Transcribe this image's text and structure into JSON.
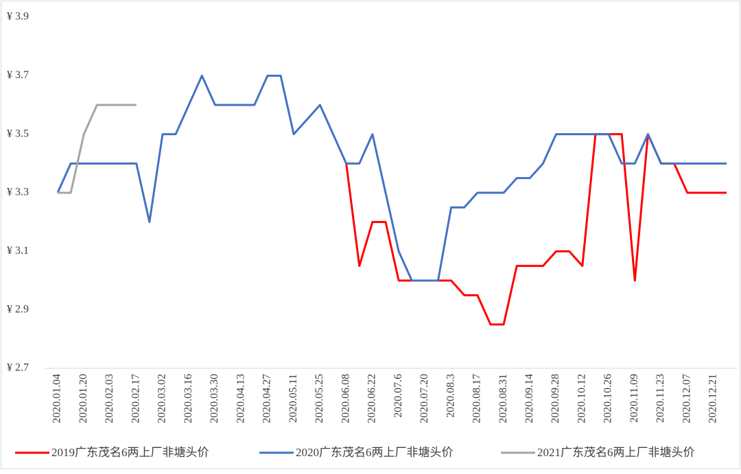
{
  "chart_data": {
    "type": "line",
    "categories": [
      "2020.01.04",
      null,
      "2020.01.20",
      null,
      "2020.02.03",
      null,
      "2020.02.17",
      null,
      "2020.03.02",
      null,
      "2020.03.16",
      null,
      "2020.03.30",
      null,
      "2020.04.13",
      null,
      "2020.04.27",
      null,
      "2020.05.11",
      null,
      "2020.05.25",
      null,
      "2020.06.08",
      null,
      "2020.06.22",
      null,
      "2020.07.6",
      null,
      "2020.07.20",
      null,
      "2020.08.3",
      null,
      "2020.08.17",
      null,
      "2020.08.31",
      null,
      "2020.09.14",
      null,
      "2020.09.28",
      null,
      "2020.10.12",
      null,
      "2020.10.26",
      null,
      "2020.11.09",
      null,
      "2020.11.23",
      null,
      "2020.12.07",
      null,
      "2020.12.21",
      null
    ],
    "series": [
      {
        "name": "2019广东茂名6两上厂非塘头价",
        "color": "#ff0000",
        "values": [
          null,
          null,
          null,
          null,
          null,
          null,
          null,
          null,
          null,
          null,
          null,
          null,
          null,
          null,
          null,
          null,
          null,
          null,
          null,
          null,
          null,
          null,
          3.4,
          3.05,
          3.2,
          3.2,
          3.0,
          3.0,
          3.0,
          3.0,
          3.0,
          2.95,
          2.95,
          2.85,
          2.85,
          3.05,
          3.05,
          3.05,
          3.1,
          3.1,
          3.05,
          3.5,
          3.5,
          3.5,
          3.0,
          3.5,
          3.4,
          3.4,
          3.3,
          3.3,
          3.3,
          3.3
        ]
      },
      {
        "name": "2020广东茂名6两上厂非塘头价",
        "color": "#4472c4",
        "values": [
          3.3,
          3.4,
          3.4,
          3.4,
          3.4,
          3.4,
          3.4,
          3.2,
          3.5,
          3.5,
          3.6,
          3.7,
          3.6,
          3.6,
          3.6,
          3.6,
          3.7,
          3.7,
          3.5,
          3.55,
          3.6,
          3.5,
          3.4,
          3.4,
          3.5,
          3.3,
          3.1,
          3.0,
          3.0,
          3.0,
          3.25,
          3.25,
          3.3,
          3.3,
          3.3,
          3.35,
          3.35,
          3.4,
          3.5,
          3.5,
          3.5,
          3.5,
          3.5,
          3.4,
          3.4,
          3.5,
          3.4,
          3.4,
          3.4,
          3.4,
          3.4,
          3.4
        ]
      },
      {
        "name": "2021广东茂名6两上厂非塘头价",
        "color": "#a5a5a5",
        "values": [
          3.3,
          3.3,
          3.5,
          3.6,
          3.6,
          3.6,
          3.6,
          null,
          null,
          null,
          null,
          null,
          null,
          null,
          null,
          null,
          null,
          null,
          null,
          null,
          null,
          null,
          null,
          null,
          null,
          null,
          null,
          null,
          null,
          null,
          null,
          null,
          null,
          null,
          null,
          null,
          null,
          null,
          null,
          null,
          null,
          null,
          null,
          null,
          null,
          null,
          null,
          null,
          null,
          null,
          null,
          null
        ]
      }
    ],
    "ylim": [
      2.7,
      3.9
    ],
    "yticks": [
      {
        "value": 2.7,
        "label": "¥ 2.7"
      },
      {
        "value": 2.9,
        "label": "¥ 2.9"
      },
      {
        "value": 3.1,
        "label": "¥ 3.1"
      },
      {
        "value": 3.3,
        "label": "¥ 3.3"
      },
      {
        "value": 3.5,
        "label": "¥ 3.5"
      },
      {
        "value": 3.7,
        "label": "¥ 3.7"
      },
      {
        "value": 3.9,
        "label": "¥ 3.9"
      }
    ],
    "grid": false,
    "legend": "bottom"
  }
}
